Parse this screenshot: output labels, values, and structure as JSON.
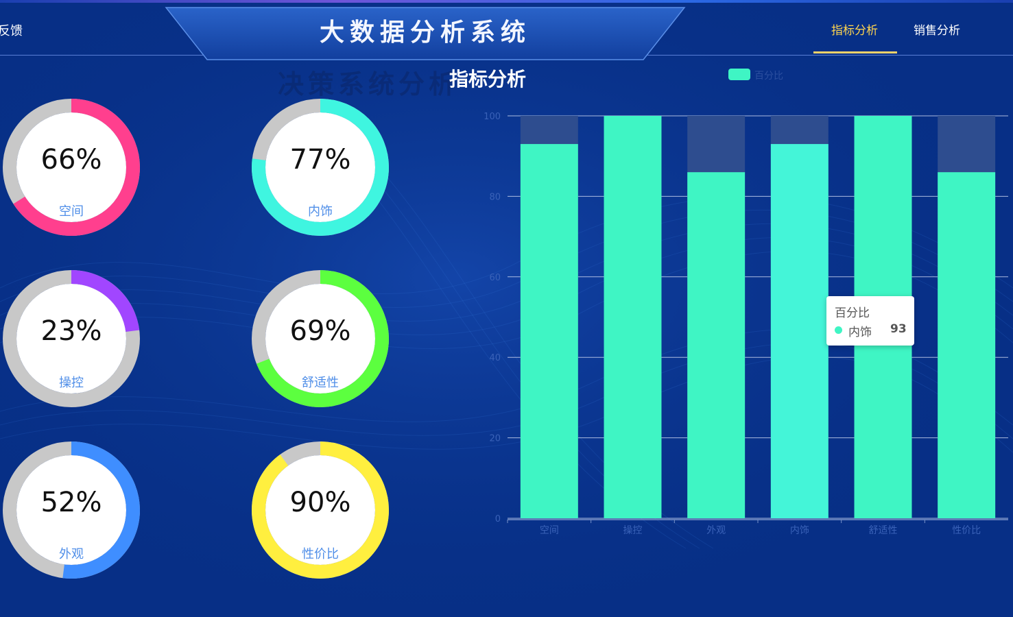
{
  "header": {
    "left_nav": "反馈",
    "title": "大数据分析系统",
    "tabs": [
      {
        "label": "指标分析",
        "active": true
      },
      {
        "label": "销售分析",
        "active": false
      }
    ]
  },
  "section": {
    "title": "指标分析",
    "watermark": "决策系统分析"
  },
  "rings": [
    {
      "label": "空间",
      "percent_text": "66%",
      "value": 66,
      "color": "#ff3f8e"
    },
    {
      "label": "内饰",
      "percent_text": "77%",
      "value": 77,
      "color": "#3ff5e0"
    },
    {
      "label": "操控",
      "percent_text": "23%",
      "value": 23,
      "color": "#a146ff"
    },
    {
      "label": "舒适性",
      "percent_text": "69%",
      "value": 69,
      "color": "#5cff3f"
    },
    {
      "label": "外观",
      "percent_text": "52%",
      "value": 52,
      "color": "#3f8eff"
    },
    {
      "label": "性价比",
      "percent_text": "90%",
      "value": 90,
      "color": "#ffef3f"
    }
  ],
  "ring_track_color": "#c8c8c8",
  "chart_data": {
    "type": "bar",
    "legend": "百分比",
    "legend_position": "top",
    "categories": [
      "空间",
      "操控",
      "外观",
      "内饰",
      "舒适性",
      "性价比"
    ],
    "series": [
      {
        "name": "百分比",
        "values": [
          93,
          100,
          86,
          93,
          100,
          86
        ],
        "color": "#3ff5c4"
      }
    ],
    "background_bar_max": 100,
    "ylim": [
      0,
      100
    ],
    "yticks": [
      "0",
      "20",
      "40",
      "60",
      "80",
      "100"
    ],
    "grid": true,
    "highlighted_category": "内饰"
  },
  "tooltip": {
    "title": "百分比",
    "name": "内饰",
    "value": "93"
  }
}
